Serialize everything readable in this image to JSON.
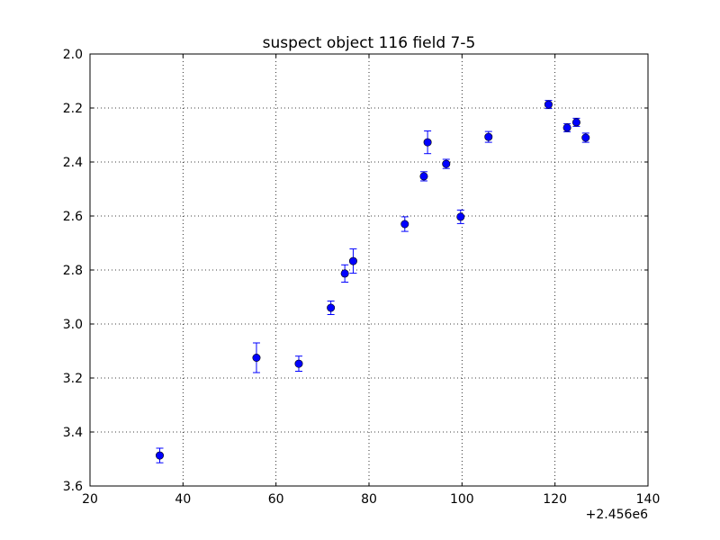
{
  "chart_data": {
    "type": "scatter",
    "title": "suspect object 116 field 7-5",
    "xlabel": "",
    "ylabel": "",
    "x_offset_label": "+2.456e6",
    "xlim": [
      20,
      140
    ],
    "ylim": [
      3.6,
      2.0
    ],
    "y_inverted": true,
    "grid": true,
    "x_ticks": [
      "20",
      "40",
      "60",
      "80",
      "100",
      "120",
      "140"
    ],
    "y_ticks": [
      "2.0",
      "2.2",
      "2.4",
      "2.6",
      "2.8",
      "3.0",
      "3.2",
      "3.4",
      "3.6"
    ],
    "marker_color": "#0000ff",
    "series": [
      {
        "points": [
          {
            "x": 35.0,
            "y": 3.487,
            "err": 0.027
          },
          {
            "x": 55.8,
            "y": 3.125,
            "err": 0.055
          },
          {
            "x": 64.9,
            "y": 3.147,
            "err": 0.028
          },
          {
            "x": 71.8,
            "y": 2.94,
            "err": 0.025
          },
          {
            "x": 74.8,
            "y": 2.813,
            "err": 0.032
          },
          {
            "x": 76.6,
            "y": 2.767,
            "err": 0.045
          },
          {
            "x": 87.7,
            "y": 2.63,
            "err": 0.027
          },
          {
            "x": 91.8,
            "y": 2.453,
            "err": 0.017
          },
          {
            "x": 92.6,
            "y": 2.327,
            "err": 0.042
          },
          {
            "x": 96.6,
            "y": 2.407,
            "err": 0.017
          },
          {
            "x": 99.7,
            "y": 2.603,
            "err": 0.025
          },
          {
            "x": 105.7,
            "y": 2.307,
            "err": 0.02
          },
          {
            "x": 118.6,
            "y": 2.187,
            "err": 0.015
          },
          {
            "x": 122.6,
            "y": 2.273,
            "err": 0.015
          },
          {
            "x": 124.6,
            "y": 2.253,
            "err": 0.015
          },
          {
            "x": 126.6,
            "y": 2.31,
            "err": 0.017
          }
        ]
      }
    ]
  }
}
